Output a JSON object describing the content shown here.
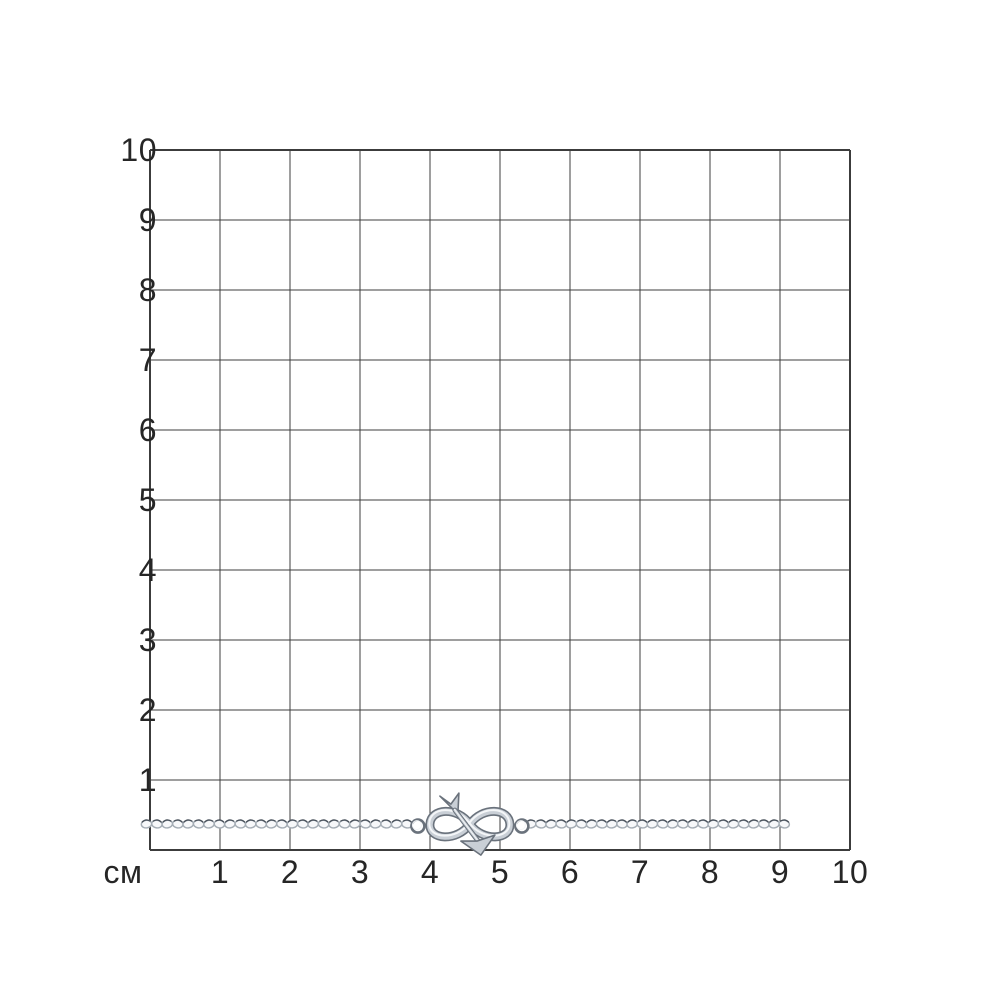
{
  "canvas": {
    "background": "#ffffff"
  },
  "measurement_grid": {
    "unit_label": "см",
    "columns": 10,
    "rows": 10,
    "x_axis_labels": [
      "1",
      "2",
      "3",
      "4",
      "5",
      "6",
      "7",
      "8",
      "9",
      "10"
    ],
    "y_axis_labels": [
      "10",
      "9",
      "8",
      "7",
      "6",
      "5",
      "4",
      "3",
      "2",
      "1"
    ],
    "line_color": "#3c3c3c",
    "label_color": "#262626"
  },
  "item": {
    "kind": "silver chain bracelet with infinity-and-arrow charm shown on centimeter sizing grid",
    "chain_segments_cm": [
      [
        -0.05,
        3.82
      ],
      [
        5.44,
        9.06
      ]
    ],
    "chain_y_cm": 0.37,
    "charm_center_cm": 4.57,
    "colors": {
      "metal_outline": "#6a727c",
      "metal_mid": "#c9cfd6",
      "metal_light": "#f4f6f8",
      "link_stroke": "#a5adb5",
      "link_fill": "#f7f8fa",
      "link_accent": "#49515b"
    }
  }
}
